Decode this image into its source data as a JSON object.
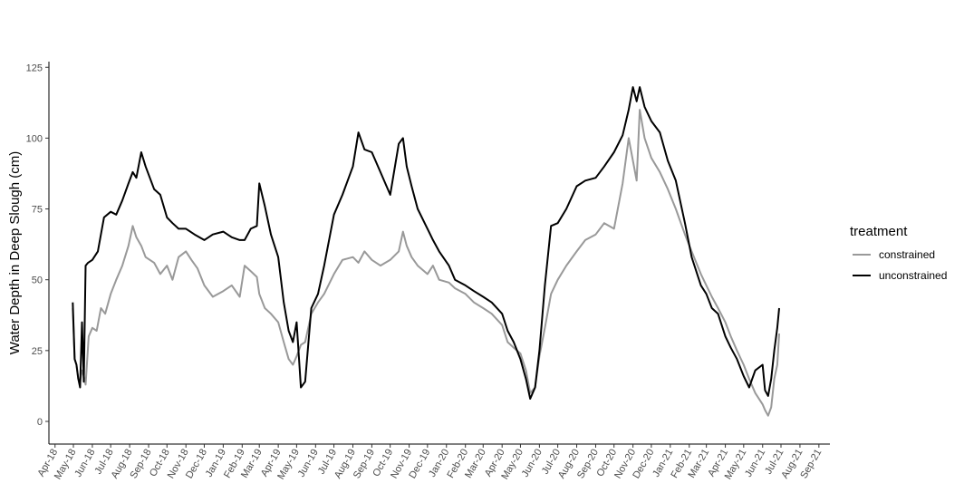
{
  "chart_data": {
    "type": "line",
    "title": "",
    "xlabel": "",
    "ylabel": "Water Depth in Deep Slough (cm)",
    "ylim": [
      -8,
      127
    ],
    "yticks": [
      0,
      25,
      50,
      75,
      100,
      125
    ],
    "ytick_labels": [
      "0",
      "25",
      "50",
      "75",
      "100",
      "125"
    ],
    "xlim": [
      "2018-03-22",
      "2021-09-19"
    ],
    "xticks": [
      "2018-04-01",
      "2018-05-01",
      "2018-06-01",
      "2018-07-01",
      "2018-08-01",
      "2018-09-01",
      "2018-10-01",
      "2018-11-01",
      "2018-12-01",
      "2019-01-01",
      "2019-02-01",
      "2019-03-01",
      "2019-04-01",
      "2019-05-01",
      "2019-06-01",
      "2019-07-01",
      "2019-08-01",
      "2019-09-01",
      "2019-10-01",
      "2019-11-01",
      "2019-12-01",
      "2020-01-01",
      "2020-02-01",
      "2020-03-01",
      "2020-04-01",
      "2020-05-01",
      "2020-06-01",
      "2020-07-01",
      "2020-08-01",
      "2020-09-01",
      "2020-10-01",
      "2020-11-01",
      "2020-12-01",
      "2021-01-01",
      "2021-02-01",
      "2021-03-01",
      "2021-04-01",
      "2021-05-01",
      "2021-06-01",
      "2021-07-01",
      "2021-08-01",
      "2021-09-01"
    ],
    "xtick_labels": [
      "Apr-18",
      "May-18",
      "Jun-18",
      "Jul-18",
      "Aug-18",
      "Sep-18",
      "Oct-18",
      "Nov-18",
      "Dec-18",
      "Jan-19",
      "Feb-19",
      "Mar-19",
      "Apr-19",
      "May-19",
      "Jun-19",
      "Jul-19",
      "Aug-19",
      "Sep-19",
      "Oct-19",
      "Nov-19",
      "Dec-19",
      "Jan-20",
      "Feb-20",
      "Mar-20",
      "Apr-20",
      "May-20",
      "Jun-20",
      "Jul-20",
      "Aug-20",
      "Sep-20",
      "Oct-20",
      "Nov-20",
      "Dec-20",
      "Jan-21",
      "Feb-21",
      "Mar-21",
      "Apr-21",
      "May-21",
      "Jun-21",
      "Jul-21",
      "Aug-21",
      "Sep-21"
    ],
    "legend": {
      "title": "treatment",
      "position": "right"
    },
    "grid": false,
    "series": [
      {
        "name": "constrained",
        "color": "#999999",
        "x": [
          "2018-04-30",
          "2018-05-03",
          "2018-05-06",
          "2018-05-09",
          "2018-05-12",
          "2018-05-15",
          "2018-05-18",
          "2018-05-21",
          "2018-05-26",
          "2018-06-01",
          "2018-06-08",
          "2018-06-15",
          "2018-06-22",
          "2018-07-01",
          "2018-07-10",
          "2018-07-20",
          "2018-07-30",
          "2018-08-06",
          "2018-08-12",
          "2018-08-20",
          "2018-08-27",
          "2018-09-03",
          "2018-09-10",
          "2018-09-20",
          "2018-10-01",
          "2018-10-10",
          "2018-10-20",
          "2018-11-01",
          "2018-11-10",
          "2018-11-20",
          "2018-12-01",
          "2018-12-15",
          "2019-01-01",
          "2019-01-15",
          "2019-01-28",
          "2019-02-05",
          "2019-02-15",
          "2019-02-25",
          "2019-03-01",
          "2019-03-10",
          "2019-03-20",
          "2019-04-01",
          "2019-04-10",
          "2019-04-18",
          "2019-04-25",
          "2019-05-01",
          "2019-05-08",
          "2019-05-15",
          "2019-05-25",
          "2019-06-05",
          "2019-06-15",
          "2019-07-01",
          "2019-07-15",
          "2019-08-01",
          "2019-08-10",
          "2019-08-20",
          "2019-09-01",
          "2019-09-15",
          "2019-10-01",
          "2019-10-15",
          "2019-10-22",
          "2019-10-28",
          "2019-11-05",
          "2019-11-15",
          "2019-12-01",
          "2019-12-10",
          "2019-12-20",
          "2020-01-05",
          "2020-01-15",
          "2020-02-01",
          "2020-02-15",
          "2020-03-01",
          "2020-03-15",
          "2020-04-01",
          "2020-04-10",
          "2020-04-20",
          "2020-05-01",
          "2020-05-10",
          "2020-05-17",
          "2020-05-25",
          "2020-06-01",
          "2020-06-10",
          "2020-06-20",
          "2020-07-01",
          "2020-07-15",
          "2020-08-01",
          "2020-08-15",
          "2020-09-01",
          "2020-09-15",
          "2020-10-01",
          "2020-10-15",
          "2020-10-25",
          "2020-11-01",
          "2020-11-07",
          "2020-11-12",
          "2020-11-20",
          "2020-12-01",
          "2020-12-15",
          "2020-12-28",
          "2021-01-10",
          "2021-01-25",
          "2021-02-05",
          "2021-02-20",
          "2021-03-01",
          "2021-03-10",
          "2021-03-20",
          "2021-04-01",
          "2021-04-10",
          "2021-04-20",
          "2021-05-01",
          "2021-05-10",
          "2021-05-20",
          "2021-06-01",
          "2021-06-05",
          "2021-06-10",
          "2021-06-15",
          "2021-06-20",
          "2021-06-25",
          "2021-06-28"
        ],
        "y": [
          40,
          22,
          20,
          15,
          14,
          18,
          16,
          13,
          30,
          33,
          32,
          40,
          38,
          45,
          50,
          55,
          62,
          69,
          65,
          62,
          58,
          57,
          56,
          52,
          55,
          50,
          58,
          60,
          57,
          54,
          48,
          44,
          46,
          48,
          44,
          55,
          53,
          51,
          45,
          40,
          38,
          35,
          28,
          22,
          20,
          23,
          27,
          28,
          38,
          42,
          45,
          52,
          57,
          58,
          56,
          60,
          57,
          55,
          57,
          60,
          67,
          62,
          58,
          55,
          52,
          55,
          50,
          49,
          47,
          45,
          42,
          40,
          38,
          34,
          28,
          26,
          24,
          18,
          10,
          12,
          23,
          33,
          45,
          50,
          55,
          60,
          64,
          66,
          70,
          68,
          84,
          100,
          92,
          85,
          110,
          100,
          93,
          88,
          82,
          75,
          66,
          60,
          52,
          48,
          44,
          40,
          35,
          30,
          25,
          20,
          15,
          10,
          6,
          4,
          2,
          5,
          15,
          20,
          31
        ]
      },
      {
        "name": "unconstrained",
        "color": "#000000",
        "x": [
          "2018-04-30",
          "2018-05-03",
          "2018-05-06",
          "2018-05-09",
          "2018-05-12",
          "2018-05-15",
          "2018-05-18",
          "2018-05-21",
          "2018-05-25",
          "2018-06-01",
          "2018-06-10",
          "2018-06-20",
          "2018-07-01",
          "2018-07-10",
          "2018-07-20",
          "2018-07-30",
          "2018-08-06",
          "2018-08-12",
          "2018-08-20",
          "2018-08-27",
          "2018-09-03",
          "2018-09-10",
          "2018-09-20",
          "2018-10-01",
          "2018-10-10",
          "2018-10-20",
          "2018-11-01",
          "2018-11-15",
          "2018-12-01",
          "2018-12-15",
          "2019-01-01",
          "2019-01-15",
          "2019-01-28",
          "2019-02-05",
          "2019-02-15",
          "2019-02-25",
          "2019-03-01",
          "2019-03-10",
          "2019-03-20",
          "2019-04-01",
          "2019-04-10",
          "2019-04-18",
          "2019-04-25",
          "2019-05-01",
          "2019-05-08",
          "2019-05-15",
          "2019-05-25",
          "2019-06-05",
          "2019-06-15",
          "2019-07-01",
          "2019-07-15",
          "2019-08-01",
          "2019-08-10",
          "2019-08-20",
          "2019-09-01",
          "2019-09-15",
          "2019-10-01",
          "2019-10-15",
          "2019-10-22",
          "2019-10-28",
          "2019-11-05",
          "2019-11-15",
          "2019-12-01",
          "2019-12-10",
          "2019-12-20",
          "2020-01-05",
          "2020-01-15",
          "2020-02-01",
          "2020-02-15",
          "2020-03-01",
          "2020-03-15",
          "2020-04-01",
          "2020-04-10",
          "2020-04-20",
          "2020-05-01",
          "2020-05-10",
          "2020-05-17",
          "2020-05-25",
          "2020-06-01",
          "2020-06-10",
          "2020-06-20",
          "2020-07-01",
          "2020-07-15",
          "2020-08-01",
          "2020-08-15",
          "2020-09-01",
          "2020-09-15",
          "2020-10-01",
          "2020-10-15",
          "2020-10-25",
          "2020-11-01",
          "2020-11-07",
          "2020-11-12",
          "2020-11-20",
          "2020-12-01",
          "2020-12-15",
          "2020-12-28",
          "2021-01-10",
          "2021-01-25",
          "2021-02-05",
          "2021-02-20",
          "2021-03-01",
          "2021-03-10",
          "2021-03-20",
          "2021-04-01",
          "2021-04-10",
          "2021-04-20",
          "2021-05-01",
          "2021-05-10",
          "2021-05-20",
          "2021-06-01",
          "2021-06-05",
          "2021-06-10",
          "2021-06-15",
          "2021-06-20",
          "2021-06-25",
          "2021-06-28"
        ],
        "y": [
          42,
          22,
          20,
          15,
          12,
          35,
          14,
          55,
          56,
          57,
          60,
          72,
          74,
          73,
          78,
          84,
          88,
          86,
          95,
          90,
          86,
          82,
          80,
          72,
          70,
          68,
          68,
          66,
          64,
          66,
          67,
          65,
          64,
          64,
          68,
          69,
          84,
          76,
          66,
          58,
          42,
          32,
          28,
          35,
          12,
          14,
          40,
          45,
          55,
          73,
          80,
          90,
          102,
          96,
          95,
          88,
          80,
          98,
          100,
          90,
          83,
          75,
          68,
          64,
          60,
          55,
          50,
          48,
          46,
          44,
          42,
          38,
          32,
          28,
          22,
          15,
          8,
          12,
          25,
          48,
          69,
          70,
          75,
          83,
          85,
          86,
          90,
          95,
          101,
          110,
          118,
          113,
          118,
          111,
          106,
          102,
          92,
          85,
          70,
          58,
          48,
          45,
          40,
          38,
          30,
          26,
          22,
          16,
          12,
          18,
          20,
          11,
          9,
          15,
          25,
          33,
          40
        ]
      }
    ]
  }
}
